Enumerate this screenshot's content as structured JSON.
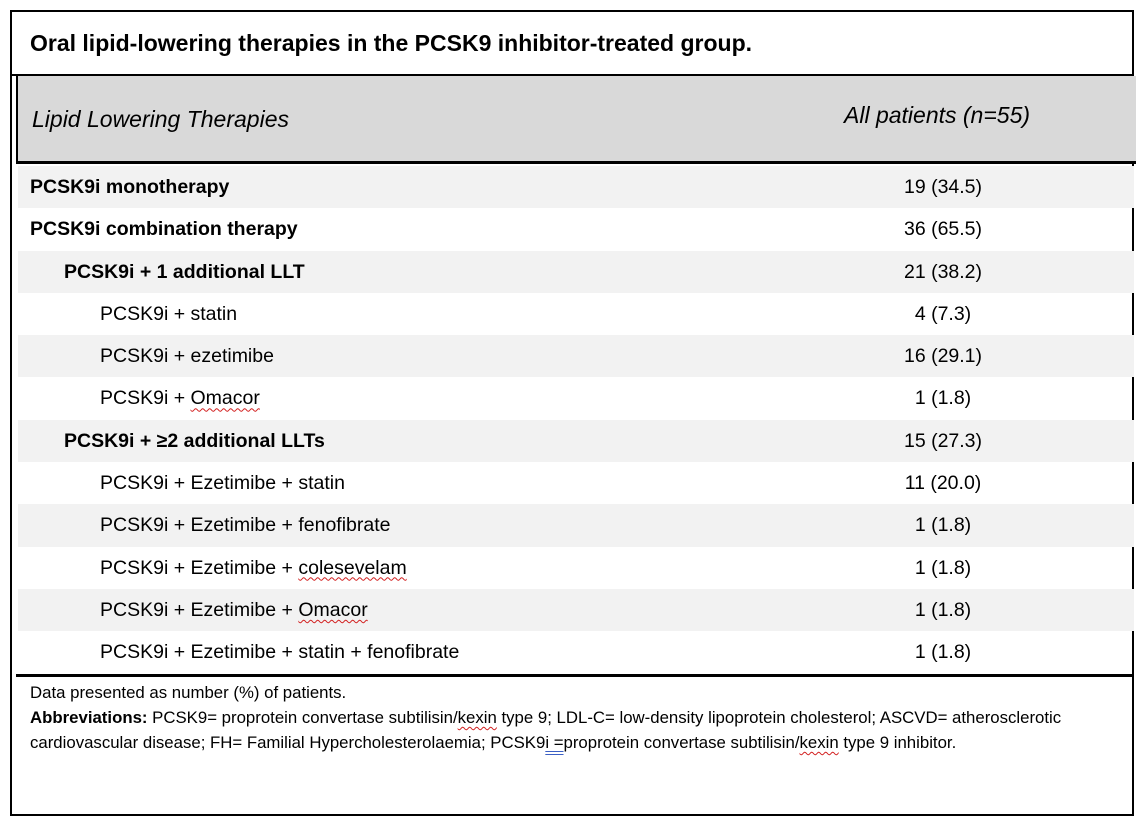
{
  "table": {
    "title": "Oral lipid-lowering therapies in the PCSK9 inhibitor-treated group.",
    "header": {
      "col1": "Lipid Lowering Therapies",
      "col2": "All patients (n=55)"
    },
    "rows": [
      {
        "label": "PCSK9i monotherapy",
        "value": "19 (34.5)"
      },
      {
        "label": "PCSK9i combination therapy",
        "value": "36 (65.5)"
      },
      {
        "label": "PCSK9i + 1 additional LLT",
        "value": "21 (38.2)"
      },
      {
        "label": "PCSK9i + statin",
        "value": "4 (7.3)"
      },
      {
        "label": "PCSK9i + ezetimibe",
        "value": "16 (29.1)"
      },
      {
        "label_prefix": "PCSK9i + ",
        "label_marked": "Omacor",
        "value": "1 (1.8)"
      },
      {
        "label": "PCSK9i + ≥2 additional LLTs",
        "value": "15 (27.3)"
      },
      {
        "label": "PCSK9i + Ezetimibe + statin",
        "value": "11 (20.0)"
      },
      {
        "label": "PCSK9i + Ezetimibe + fenofibrate",
        "value": "1 (1.8)"
      },
      {
        "label_prefix": "PCSK9i + Ezetimibe + ",
        "label_marked": "colesevelam",
        "value": "1 (1.8)"
      },
      {
        "label_prefix": "PCSK9i + Ezetimibe + ",
        "label_marked": "Omacor",
        "value": "1 (1.8)"
      },
      {
        "label": "PCSK9i + Ezetimibe + statin + fenofibrate",
        "value": "1 (1.8)"
      }
    ]
  },
  "notes": {
    "line1": "Data presented as number (%) of patients.",
    "abbrev_lead": "Abbreviations:",
    "abbrev_a": " PCSK9= proprotein convertase subtilisin/",
    "abbrev_kexin1": "kexin",
    "abbrev_b": " type 9; LDL-C= low-density lipoprotein cholesterol; ASCVD= atherosclerotic cardiovascular disease; FH= Familial Hypercholesterolaemia; PCSK9",
    "abbrev_i": "i =",
    "abbrev_c": "proprotein convertase subtilisin/",
    "abbrev_kexin2": "kexin",
    "abbrev_d": " type 9 inhibitor."
  }
}
